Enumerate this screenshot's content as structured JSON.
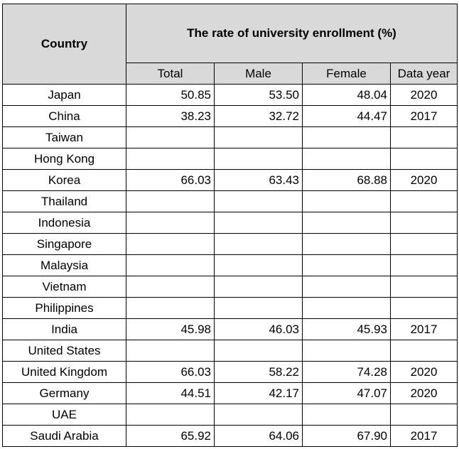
{
  "table": {
    "header_country": "Country",
    "header_title": "The rate of university enrollment (%)",
    "sub_headers": [
      "Total",
      "Male",
      "Female",
      "Data year"
    ],
    "rows": [
      {
        "country": "Japan",
        "total": "50.85",
        "male": "53.50",
        "female": "48.04",
        "year": "2020"
      },
      {
        "country": "China",
        "total": "38.23",
        "male": "32.72",
        "female": "44.47",
        "year": "2017"
      },
      {
        "country": "Taiwan",
        "total": "",
        "male": "",
        "female": "",
        "year": ""
      },
      {
        "country": "Hong Kong",
        "total": "",
        "male": "",
        "female": "",
        "year": ""
      },
      {
        "country": "Korea",
        "total": "66.03",
        "male": "63.43",
        "female": "68.88",
        "year": "2020"
      },
      {
        "country": "Thailand",
        "total": "",
        "male": "",
        "female": "",
        "year": ""
      },
      {
        "country": "Indonesia",
        "total": "",
        "male": "",
        "female": "",
        "year": ""
      },
      {
        "country": "Singapore",
        "total": "",
        "male": "",
        "female": "",
        "year": ""
      },
      {
        "country": "Malaysia",
        "total": "",
        "male": "",
        "female": "",
        "year": ""
      },
      {
        "country": "Vietnam",
        "total": "",
        "male": "",
        "female": "",
        "year": ""
      },
      {
        "country": "Philippines",
        "total": "",
        "male": "",
        "female": "",
        "year": ""
      },
      {
        "country": "India",
        "total": "45.98",
        "male": "46.03",
        "female": "45.93",
        "year": "2017"
      },
      {
        "country": "United States",
        "total": "",
        "male": "",
        "female": "",
        "year": ""
      },
      {
        "country": "United Kingdom",
        "total": "66.03",
        "male": "58.22",
        "female": "74.28",
        "year": "2020"
      },
      {
        "country": "Germany",
        "total": "44.51",
        "male": "42.17",
        "female": "47.07",
        "year": "2020"
      },
      {
        "country": "UAE",
        "total": "",
        "male": "",
        "female": "",
        "year": ""
      },
      {
        "country": "Saudi Arabia",
        "total": "65.92",
        "male": "64.06",
        "female": "67.90",
        "year": "2017"
      }
    ]
  }
}
